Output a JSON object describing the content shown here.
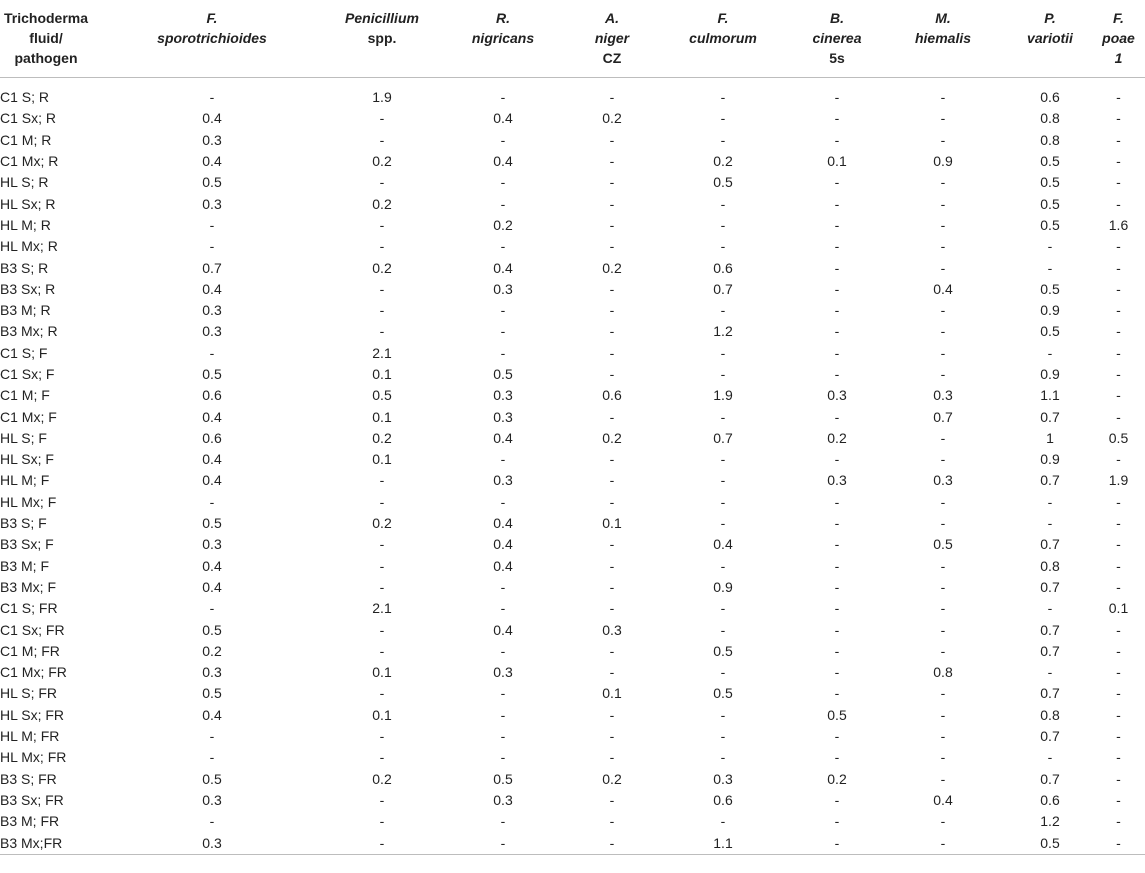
{
  "table": {
    "columns": [
      {
        "lines": [
          "Trichoderma",
          "fluid/",
          "pathogen"
        ],
        "italic": [
          false,
          false,
          false
        ]
      },
      {
        "lines": [
          "F.",
          "sporotrichioides"
        ],
        "italic": [
          true,
          true
        ]
      },
      {
        "lines": [
          "Penicillium",
          "spp."
        ],
        "italic": [
          true,
          false
        ]
      },
      {
        "lines": [
          "R.",
          "nigricans"
        ],
        "italic": [
          true,
          true
        ]
      },
      {
        "lines": [
          "A.",
          "niger",
          "CZ"
        ],
        "italic": [
          true,
          true,
          false
        ]
      },
      {
        "lines": [
          "F.",
          "culmorum"
        ],
        "italic": [
          true,
          true
        ]
      },
      {
        "lines": [
          "B.",
          "cinerea",
          "5s"
        ],
        "italic": [
          true,
          true,
          false
        ]
      },
      {
        "lines": [
          "M.",
          "hiemalis"
        ],
        "italic": [
          true,
          true
        ]
      },
      {
        "lines": [
          "P.",
          "variotii"
        ],
        "italic": [
          true,
          true
        ]
      },
      {
        "lines": [
          "F.",
          "poae",
          "1"
        ],
        "italic": [
          true,
          true,
          true
        ]
      }
    ],
    "rows": [
      [
        "C1 S; R",
        "-",
        "1.9",
        "-",
        "-",
        "-",
        "-",
        "-",
        "0.6",
        "-"
      ],
      [
        "C1 Sx; R",
        "0.4",
        "-",
        "0.4",
        "0.2",
        "-",
        "-",
        "-",
        "0.8",
        "-"
      ],
      [
        "C1 M; R",
        "0.3",
        "-",
        "-",
        "-",
        "-",
        "-",
        "-",
        "0.8",
        "-"
      ],
      [
        "C1 Mx; R",
        "0.4",
        "0.2",
        "0.4",
        "-",
        "0.2",
        "0.1",
        "0.9",
        "0.5",
        "-"
      ],
      [
        "HL S; R",
        "0.5",
        "-",
        "-",
        "-",
        "0.5",
        "-",
        "-",
        "0.5",
        "-"
      ],
      [
        "HL Sx; R",
        "0.3",
        "0.2",
        "-",
        "-",
        "-",
        "-",
        "-",
        "0.5",
        "-"
      ],
      [
        "HL M; R",
        "-",
        "-",
        "0.2",
        "-",
        "-",
        "-",
        "-",
        "0.5",
        "1.6"
      ],
      [
        "HL Mx; R",
        "-",
        "-",
        "-",
        "-",
        "-",
        "-",
        "-",
        "-",
        "-"
      ],
      [
        "B3 S; R",
        "0.7",
        "0.2",
        "0.4",
        "0.2",
        "0.6",
        "-",
        "-",
        "-",
        "-"
      ],
      [
        "B3 Sx; R",
        "0.4",
        "-",
        "0.3",
        "-",
        "0.7",
        "-",
        "0.4",
        "0.5",
        "-"
      ],
      [
        "B3 M; R",
        "0.3",
        "-",
        "-",
        "-",
        "-",
        "-",
        "-",
        "0.9",
        "-"
      ],
      [
        "B3 Mx; R",
        "0.3",
        "-",
        "-",
        "-",
        "1.2",
        "-",
        "-",
        "0.5",
        "-"
      ],
      [
        "C1 S; F",
        "-",
        "2.1",
        "-",
        "-",
        "-",
        "-",
        "-",
        "-",
        "-"
      ],
      [
        "C1 Sx; F",
        "0.5",
        "0.1",
        "0.5",
        "-",
        "-",
        "-",
        "-",
        "0.9",
        "-"
      ],
      [
        "C1 M; F",
        "0.6",
        "0.5",
        "0.3",
        "0.6",
        "1.9",
        "0.3",
        "0.3",
        "1.1",
        "-"
      ],
      [
        "C1 Mx; F",
        "0.4",
        "0.1",
        "0.3",
        "-",
        "-",
        "-",
        "0.7",
        "0.7",
        "-"
      ],
      [
        "HL S; F",
        "0.6",
        "0.2",
        "0.4",
        "0.2",
        "0.7",
        "0.2",
        "-",
        "1",
        "0.5"
      ],
      [
        "HL Sx; F",
        "0.4",
        "0.1",
        "-",
        "-",
        "-",
        "-",
        "-",
        "0.9",
        "-"
      ],
      [
        "HL M; F",
        "0.4",
        "-",
        "0.3",
        "-",
        "-",
        "0.3",
        "0.3",
        "0.7",
        "1.9"
      ],
      [
        "HL Mx; F",
        "-",
        "-",
        "-",
        "-",
        "-",
        "-",
        "-",
        "-",
        "-"
      ],
      [
        "B3 S; F",
        "0.5",
        "0.2",
        "0.4",
        "0.1",
        "-",
        "-",
        "-",
        "-",
        "-"
      ],
      [
        "B3 Sx; F",
        "0.3",
        "-",
        "0.4",
        "-",
        "0.4",
        "-",
        "0.5",
        "0.7",
        "-"
      ],
      [
        "B3 M; F",
        "0.4",
        "-",
        "0.4",
        "-",
        "-",
        "-",
        "-",
        "0.8",
        "-"
      ],
      [
        "B3 Mx; F",
        "0.4",
        "-",
        "-",
        "-",
        "0.9",
        "-",
        "-",
        "0.7",
        "-"
      ],
      [
        "C1 S; FR",
        "-",
        "2.1",
        "-",
        "-",
        "-",
        "-",
        "-",
        "-",
        "0.1"
      ],
      [
        "C1 Sx; FR",
        "0.5",
        "-",
        "0.4",
        "0.3",
        "-",
        "-",
        "-",
        "0.7",
        "-"
      ],
      [
        "C1 M; FR",
        "0.2",
        "-",
        "-",
        "-",
        "0.5",
        "-",
        "-",
        "0.7",
        "-"
      ],
      [
        "C1 Mx; FR",
        "0.3",
        "0.1",
        "0.3",
        "-",
        "-",
        "-",
        "0.8",
        "-",
        "-"
      ],
      [
        "HL S; FR",
        "0.5",
        "-",
        "-",
        "0.1",
        "0.5",
        "-",
        "-",
        "0.7",
        "-"
      ],
      [
        "HL Sx; FR",
        "0.4",
        "0.1",
        "-",
        "-",
        "-",
        "0.5",
        "-",
        "0.8",
        "-"
      ],
      [
        "HL M; FR",
        "-",
        "-",
        "-",
        "-",
        "-",
        "-",
        "-",
        "0.7",
        "-"
      ],
      [
        "HL Mx; FR",
        "-",
        "-",
        "-",
        "-",
        "-",
        "-",
        "-",
        "-",
        "-"
      ],
      [
        "B3 S; FR",
        "0.5",
        "0.2",
        "0.5",
        "0.2",
        "0.3",
        "0.2",
        "-",
        "0.7",
        "-"
      ],
      [
        "B3 Sx; FR",
        "0.3",
        "-",
        "0.3",
        "-",
        "0.6",
        "-",
        "0.4",
        "0.6",
        "-"
      ],
      [
        "B3 M; FR",
        "-",
        "-",
        "-",
        "-",
        "-",
        "-",
        "-",
        "1.2",
        "-"
      ],
      [
        "B3 Mx;FR",
        "0.3",
        "-",
        "-",
        "-",
        "1.1",
        "-",
        "-",
        "0.5",
        "-"
      ]
    ]
  }
}
